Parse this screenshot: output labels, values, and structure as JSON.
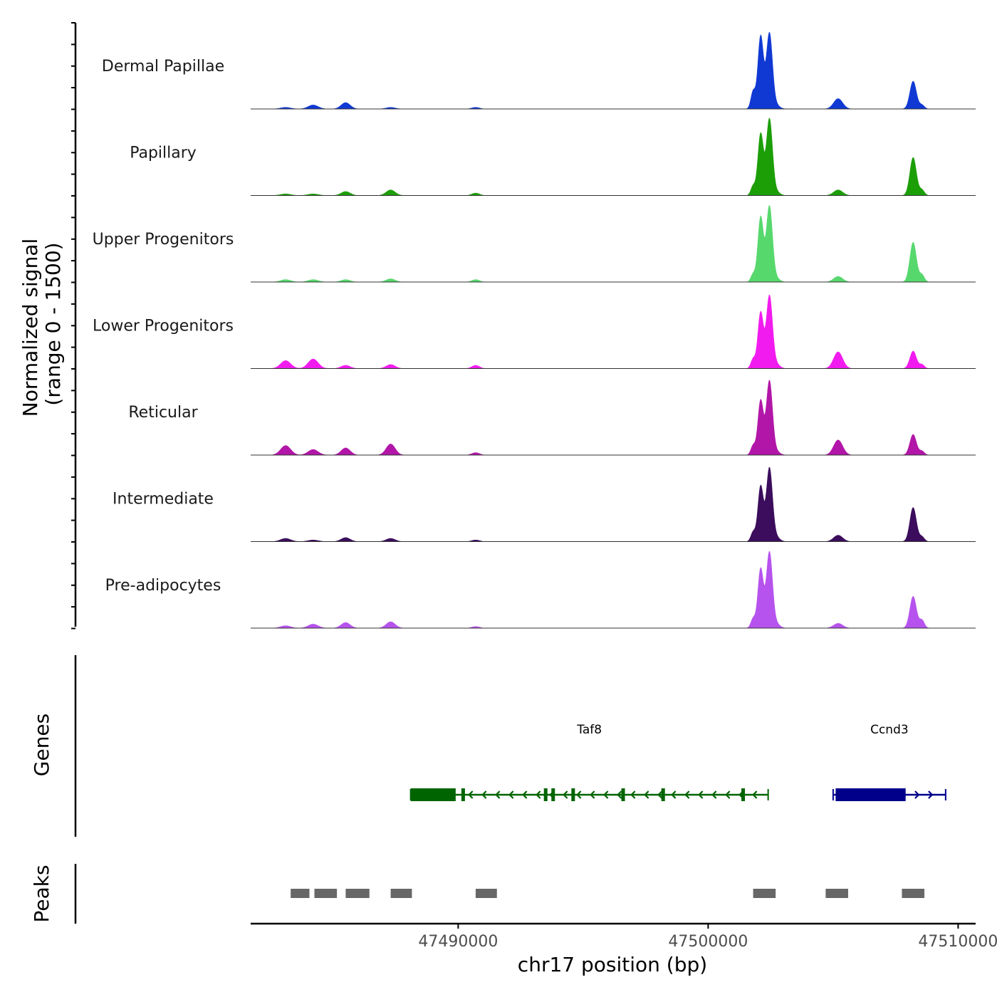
{
  "chart_data": {
    "type": "area",
    "chromosome": "chr17",
    "xlabel": "chr17 position (bp)",
    "ylabel_line1": "Normalized signal",
    "ylabel_line2": "(range 0 - 1500)",
    "y_range": [
      0,
      1500
    ],
    "x_range": [
      47481700,
      47510700
    ],
    "x_ticks": [
      {
        "value": 47490000,
        "label": "47490000"
      },
      {
        "value": 47500000,
        "label": "47500000"
      },
      {
        "value": 47510000,
        "label": "47510000"
      }
    ],
    "peaks_profile": [
      {
        "pos": 47483100,
        "w": 200,
        "rel": 0.04
      },
      {
        "pos": 47484200,
        "w": 200,
        "rel": 0.06
      },
      {
        "pos": 47485500,
        "w": 180,
        "rel": 0.07
      },
      {
        "pos": 47487300,
        "w": 180,
        "rel": 0.09
      },
      {
        "pos": 47490700,
        "w": 150,
        "rel": 0.04
      },
      {
        "pos": 47501800,
        "w": 90,
        "rel": 0.18
      },
      {
        "pos": 47502100,
        "w": 110,
        "rel": 0.72
      },
      {
        "pos": 47502450,
        "w": 120,
        "rel": 0.9
      },
      {
        "pos": 47502700,
        "w": 150,
        "rel": 0.12
      },
      {
        "pos": 47505200,
        "w": 180,
        "rel": 0.22
      },
      {
        "pos": 47508200,
        "w": 130,
        "rel": 0.4
      },
      {
        "pos": 47508550,
        "w": 100,
        "rel": 0.08
      }
    ],
    "series": [
      {
        "name": "Dermal Papillae",
        "color": "#1039d4",
        "scale": [
          0.02,
          0.05,
          0.08,
          0.02,
          0.02,
          0.22,
          0.92,
          0.95,
          0.05,
          0.13,
          0.35,
          0.05
        ]
      },
      {
        "name": "Papillary",
        "color": "#1c9e06",
        "scale": [
          0.02,
          0.02,
          0.05,
          0.07,
          0.03,
          0.12,
          0.78,
          0.96,
          0.05,
          0.07,
          0.48,
          0.07
        ]
      },
      {
        "name": "Upper Progenitors",
        "color": "#57d86d",
        "scale": [
          0.03,
          0.03,
          0.03,
          0.04,
          0.03,
          0.1,
          0.82,
          0.95,
          0.05,
          0.07,
          0.5,
          0.09
        ]
      },
      {
        "name": "Lower Progenitors",
        "color": "#f21bef",
        "scale": [
          0.1,
          0.12,
          0.04,
          0.05,
          0.04,
          0.12,
          0.71,
          0.91,
          0.06,
          0.21,
          0.22,
          0.05
        ]
      },
      {
        "name": "Reticular",
        "color": "#b216a8",
        "scale": [
          0.12,
          0.07,
          0.09,
          0.14,
          0.03,
          0.12,
          0.69,
          0.93,
          0.05,
          0.19,
          0.26,
          0.05
        ]
      },
      {
        "name": "Intermediate",
        "color": "#3b0d5c",
        "scale": [
          0.04,
          0.02,
          0.05,
          0.04,
          0.02,
          0.12,
          0.7,
          0.92,
          0.06,
          0.08,
          0.43,
          0.06
        ]
      },
      {
        "name": "Pre-adipocytes",
        "color": "#b653ee",
        "scale": [
          0.03,
          0.05,
          0.07,
          0.08,
          0.02,
          0.12,
          0.75,
          0.95,
          0.06,
          0.06,
          0.4,
          0.1
        ]
      }
    ],
    "genes_track_label": "Genes",
    "genes": [
      {
        "name": "Taf8",
        "color": "#006400",
        "start": 47488100,
        "end": 47502400,
        "strand": "-",
        "thick": [
          47488100,
          47489900
        ],
        "exons": [
          47490200,
          47493500,
          47493800,
          47494600,
          47496600,
          47498200,
          47501400
        ]
      },
      {
        "name": "Ccnd3",
        "color": "#00008b",
        "start": 47505000,
        "end": 47509500,
        "strand": "+",
        "thick": [
          47505100,
          47507900
        ],
        "exons": []
      }
    ],
    "peaks_track_label": "Peaks",
    "peak_regions": [
      [
        47483300,
        47484050
      ],
      [
        47484250,
        47485150
      ],
      [
        47485500,
        47486450
      ],
      [
        47487300,
        47488150
      ],
      [
        47490700,
        47491550
      ],
      [
        47501800,
        47502700
      ],
      [
        47504700,
        47505600
      ],
      [
        47507750,
        47508650
      ]
    ]
  }
}
